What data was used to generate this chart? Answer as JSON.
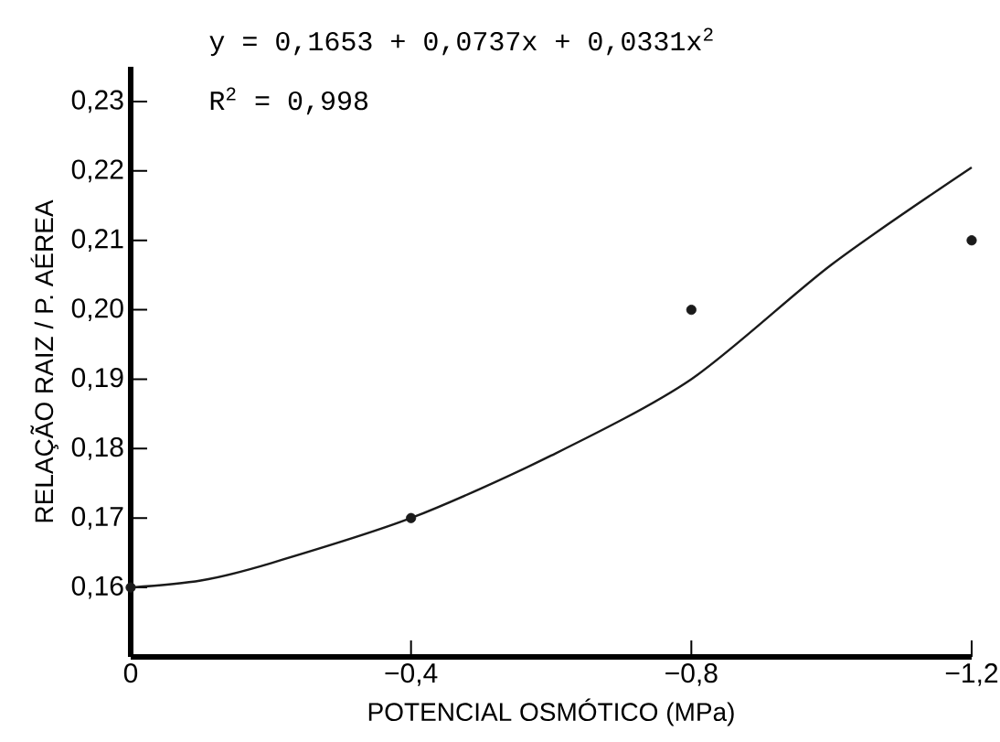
{
  "chart_data": {
    "type": "scatter",
    "xlabel": "POTENCIAL  OSMÓTICO (MPa)",
    "ylabel": "RELAÇÃO  RAIZ / P. AÉREA",
    "annotations": [
      "y = 0,1653 + 0,0737x + 0,0331x$^{2}$",
      "R$^{2}$ = 0,998"
    ],
    "xlim": [
      0,
      -1.2
    ],
    "ylim": [
      0.15,
      0.235
    ],
    "xticks": [
      {
        "value": 0,
        "label": "0"
      },
      {
        "value": -0.4,
        "label": "−0,4"
      },
      {
        "value": -0.8,
        "label": "−0,8"
      },
      {
        "value": -1.2,
        "label": "−1,2"
      }
    ],
    "yticks": [
      {
        "value": 0.16,
        "label": "0,16"
      },
      {
        "value": 0.17,
        "label": "0,17"
      },
      {
        "value": 0.18,
        "label": "0,18"
      },
      {
        "value": 0.19,
        "label": "0,19"
      },
      {
        "value": 0.2,
        "label": "0,20"
      },
      {
        "value": 0.21,
        "label": "0,21"
      },
      {
        "value": 0.22,
        "label": "0,22"
      },
      {
        "value": 0.23,
        "label": "0,23"
      }
    ],
    "marker": "circle",
    "series": [
      {
        "color": "#1a1a1a",
        "x": [
          0,
          -0.4,
          -0.8,
          -1.2
        ],
        "values": [
          0.16,
          0.17,
          0.2,
          0.21
        ]
      },
      {
        "type": "line",
        "color": "#1a1a1a",
        "marker": "none",
        "x": [
          0,
          -0.1,
          -0.2,
          -0.4,
          -0.6,
          -0.8,
          -1.0,
          -1.2
        ],
        "values": [
          0.16,
          0.161,
          0.1635,
          0.17,
          0.179,
          0.19,
          0.2065,
          0.2205
        ]
      }
    ]
  }
}
